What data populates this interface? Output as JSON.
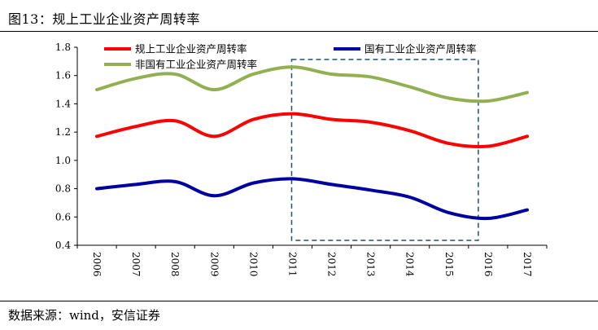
{
  "figure": {
    "title": "图13：规上工业企业资产周转率",
    "source": "数据来源：wind，安信证券"
  },
  "chart_data": {
    "type": "line",
    "x": [
      "2006",
      "2007",
      "2008",
      "2009",
      "2010",
      "2011",
      "2012",
      "2013",
      "2014",
      "2015",
      "2016",
      "2017"
    ],
    "ylim": [
      0.4,
      1.8
    ],
    "yticks": [
      "0.4",
      "0.6",
      "0.8",
      "1.0",
      "1.2",
      "1.4",
      "1.6",
      "1.8"
    ],
    "grid": false,
    "legend_position": "top",
    "highlight_box": {
      "x_from": "2011",
      "x_to": "2016",
      "style": "dashed",
      "color": "#1f4e79"
    },
    "series": [
      {
        "name": "规上工业企业资产周转率",
        "color": "#ff0000",
        "values": [
          1.17,
          1.24,
          1.28,
          1.17,
          1.29,
          1.33,
          1.29,
          1.27,
          1.21,
          1.12,
          1.1,
          1.17
        ]
      },
      {
        "name": "国有工业企业资产周转率",
        "color": "#0000a0",
        "values": [
          0.8,
          0.83,
          0.85,
          0.75,
          0.84,
          0.87,
          0.83,
          0.79,
          0.74,
          0.63,
          0.59,
          0.65
        ]
      },
      {
        "name": "非国有工业企业资产周转率",
        "color": "#92b052",
        "values": [
          1.5,
          1.58,
          1.61,
          1.5,
          1.61,
          1.66,
          1.61,
          1.59,
          1.52,
          1.44,
          1.42,
          1.48
        ]
      }
    ]
  }
}
